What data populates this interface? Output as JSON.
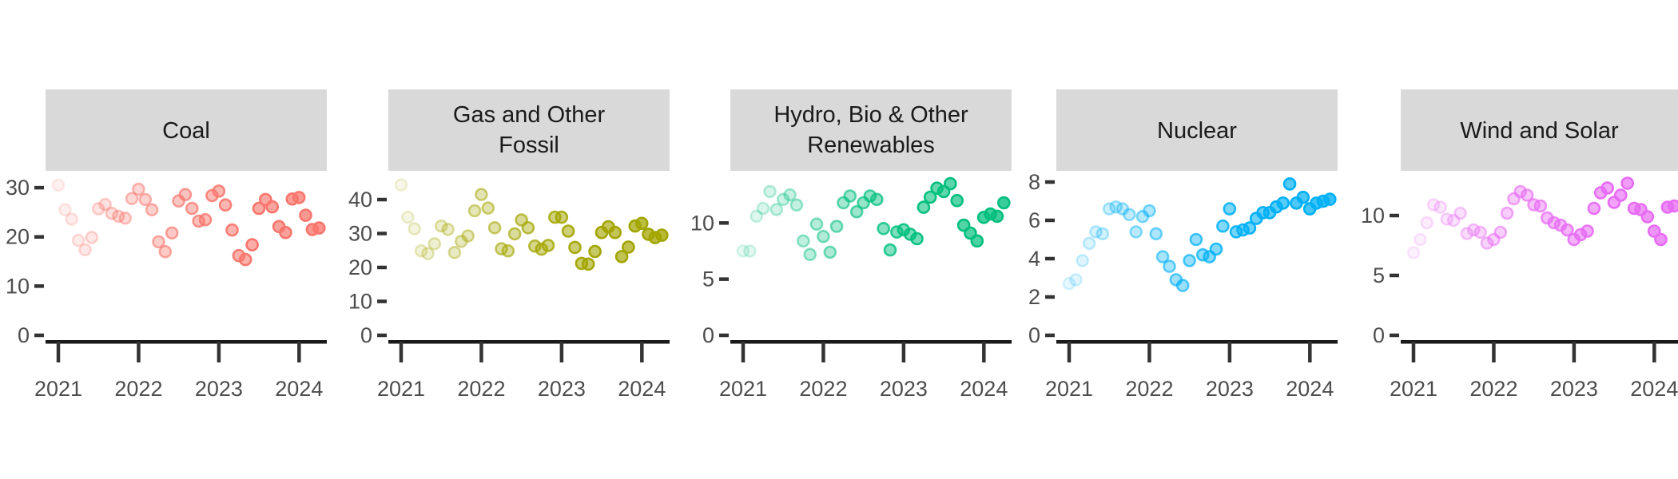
{
  "chart_data": {
    "type": "scatter",
    "title": "",
    "description": "Faceted monthly scatter plot, one panel per generation source, points fade in opacity from early 2021 (faint) to 2024 (opaque)",
    "x_tick_labels": [
      "2021",
      "2022",
      "2023",
      "2024"
    ],
    "months": [
      "2021-01",
      "2021-02",
      "2021-03",
      "2021-04",
      "2021-05",
      "2021-06",
      "2021-07",
      "2021-08",
      "2021-09",
      "2021-10",
      "2021-11",
      "2021-12",
      "2022-01",
      "2022-02",
      "2022-03",
      "2022-04",
      "2022-05",
      "2022-06",
      "2022-07",
      "2022-08",
      "2022-09",
      "2022-10",
      "2022-11",
      "2022-12",
      "2023-01",
      "2023-02",
      "2023-03",
      "2023-04",
      "2023-05",
      "2023-06",
      "2023-07",
      "2023-08",
      "2023-09",
      "2023-10",
      "2023-11",
      "2023-12",
      "2024-01",
      "2024-02",
      "2024-03",
      "2024-04"
    ],
    "alpha_range": [
      0.12,
      1.0
    ],
    "grid": false,
    "legend_position": "none",
    "style": {
      "strip_bg": "#D9D9D9",
      "strip_text_color": "#1A1A1A",
      "axis_text_color": "#4D4D4D",
      "axis_line_color": "#1A1A1A",
      "tick_color": "#333333",
      "panel_bg": "#FFFFFF"
    },
    "facets": [
      {
        "key": "coal",
        "label": "Coal",
        "label_lines": [
          "Coal"
        ],
        "color": "#F8766D",
        "y_ticks": [
          0,
          10,
          20,
          30
        ],
        "ylim": [
          0,
          33.1
        ],
        "values": [
          30.5,
          25.5,
          23.6,
          19.3,
          17.4,
          19.9,
          25.7,
          26.6,
          24.8,
          24.2,
          23.8,
          27.8,
          29.7,
          27.6,
          25.5,
          19.0,
          17.0,
          20.8,
          27.3,
          28.6,
          25.8,
          23.2,
          23.5,
          28.4,
          29.3,
          26.5,
          21.4,
          16.2,
          15.4,
          18.4,
          25.8,
          27.6,
          26.1,
          22.1,
          20.9,
          27.7,
          28.0,
          24.4,
          21.5,
          21.8
        ]
      },
      {
        "key": "gas-and-other-fossil",
        "label": "Gas and Other Fossil",
        "label_lines": [
          "Gas and Other",
          "Fossil"
        ],
        "color": "#A3A500",
        "y_ticks": [
          0,
          10,
          20,
          30,
          40
        ],
        "ylim": [
          0,
          48
        ],
        "values": [
          44.3,
          34.8,
          31.4,
          24.9,
          24.1,
          27.0,
          32.2,
          31.2,
          24.4,
          27.7,
          29.3,
          36.7,
          41.5,
          37.5,
          31.7,
          25.5,
          24.9,
          29.9,
          34.0,
          31.7,
          26.3,
          25.4,
          26.5,
          34.8,
          34.8,
          30.7,
          25.9,
          21.2,
          21.0,
          24.7,
          30.3,
          32.0,
          30.3,
          23.2,
          26.0,
          32.2,
          33.0,
          29.8,
          28.8,
          29.5
        ]
      },
      {
        "key": "hydro-bio-other-renewables",
        "label": "Hydro, Bio & Other Renewables",
        "label_lines": [
          "Hydro, Bio & Other",
          "Renewables"
        ],
        "color": "#00BF7D",
        "y_ticks": [
          0,
          5,
          10
        ],
        "ylim": [
          0,
          14.5
        ],
        "values": [
          7.5,
          7.5,
          10.6,
          11.3,
          12.8,
          11.2,
          12.1,
          12.5,
          11.6,
          8.4,
          7.2,
          9.9,
          8.8,
          7.4,
          9.7,
          11.8,
          12.4,
          11.0,
          11.8,
          12.4,
          12.1,
          9.5,
          7.6,
          9.2,
          9.4,
          9.0,
          8.6,
          11.4,
          12.3,
          13.1,
          12.8,
          13.5,
          12.0,
          9.8,
          9.1,
          8.4,
          10.5,
          10.8,
          10.6,
          11.8
        ]
      },
      {
        "key": "nuclear",
        "label": "Nuclear",
        "label_lines": [
          "Nuclear"
        ],
        "color": "#00B0F6",
        "y_ticks": [
          0,
          2,
          4,
          6,
          8
        ],
        "ylim": [
          0,
          8.5
        ],
        "values": [
          2.7,
          2.9,
          3.9,
          4.8,
          5.4,
          5.3,
          6.6,
          6.7,
          6.6,
          6.3,
          5.4,
          6.2,
          6.5,
          5.3,
          4.1,
          3.6,
          2.9,
          2.6,
          3.9,
          5.0,
          4.2,
          4.1,
          4.5,
          5.7,
          6.6,
          5.4,
          5.5,
          5.6,
          6.1,
          6.4,
          6.4,
          6.7,
          6.9,
          7.9,
          6.9,
          7.2,
          6.6,
          6.9,
          7.0,
          7.1
        ]
      },
      {
        "key": "wind-and-solar",
        "label": "Wind and Solar",
        "label_lines": [
          "Wind and Solar"
        ],
        "color": "#E76BF3",
        "y_ticks": [
          0,
          5,
          10
        ],
        "ylim": [
          0,
          13.6
        ],
        "values": [
          6.9,
          8.0,
          9.4,
          10.9,
          10.7,
          9.7,
          9.6,
          10.2,
          8.5,
          8.8,
          8.6,
          7.7,
          8.0,
          8.6,
          10.2,
          11.4,
          12.0,
          11.7,
          10.9,
          10.8,
          9.8,
          9.4,
          9.2,
          8.8,
          8.0,
          8.4,
          8.7,
          10.6,
          11.9,
          12.3,
          11.1,
          11.7,
          12.7,
          10.6,
          10.5,
          9.9,
          8.7,
          8.0,
          10.7,
          10.8
        ]
      }
    ]
  }
}
